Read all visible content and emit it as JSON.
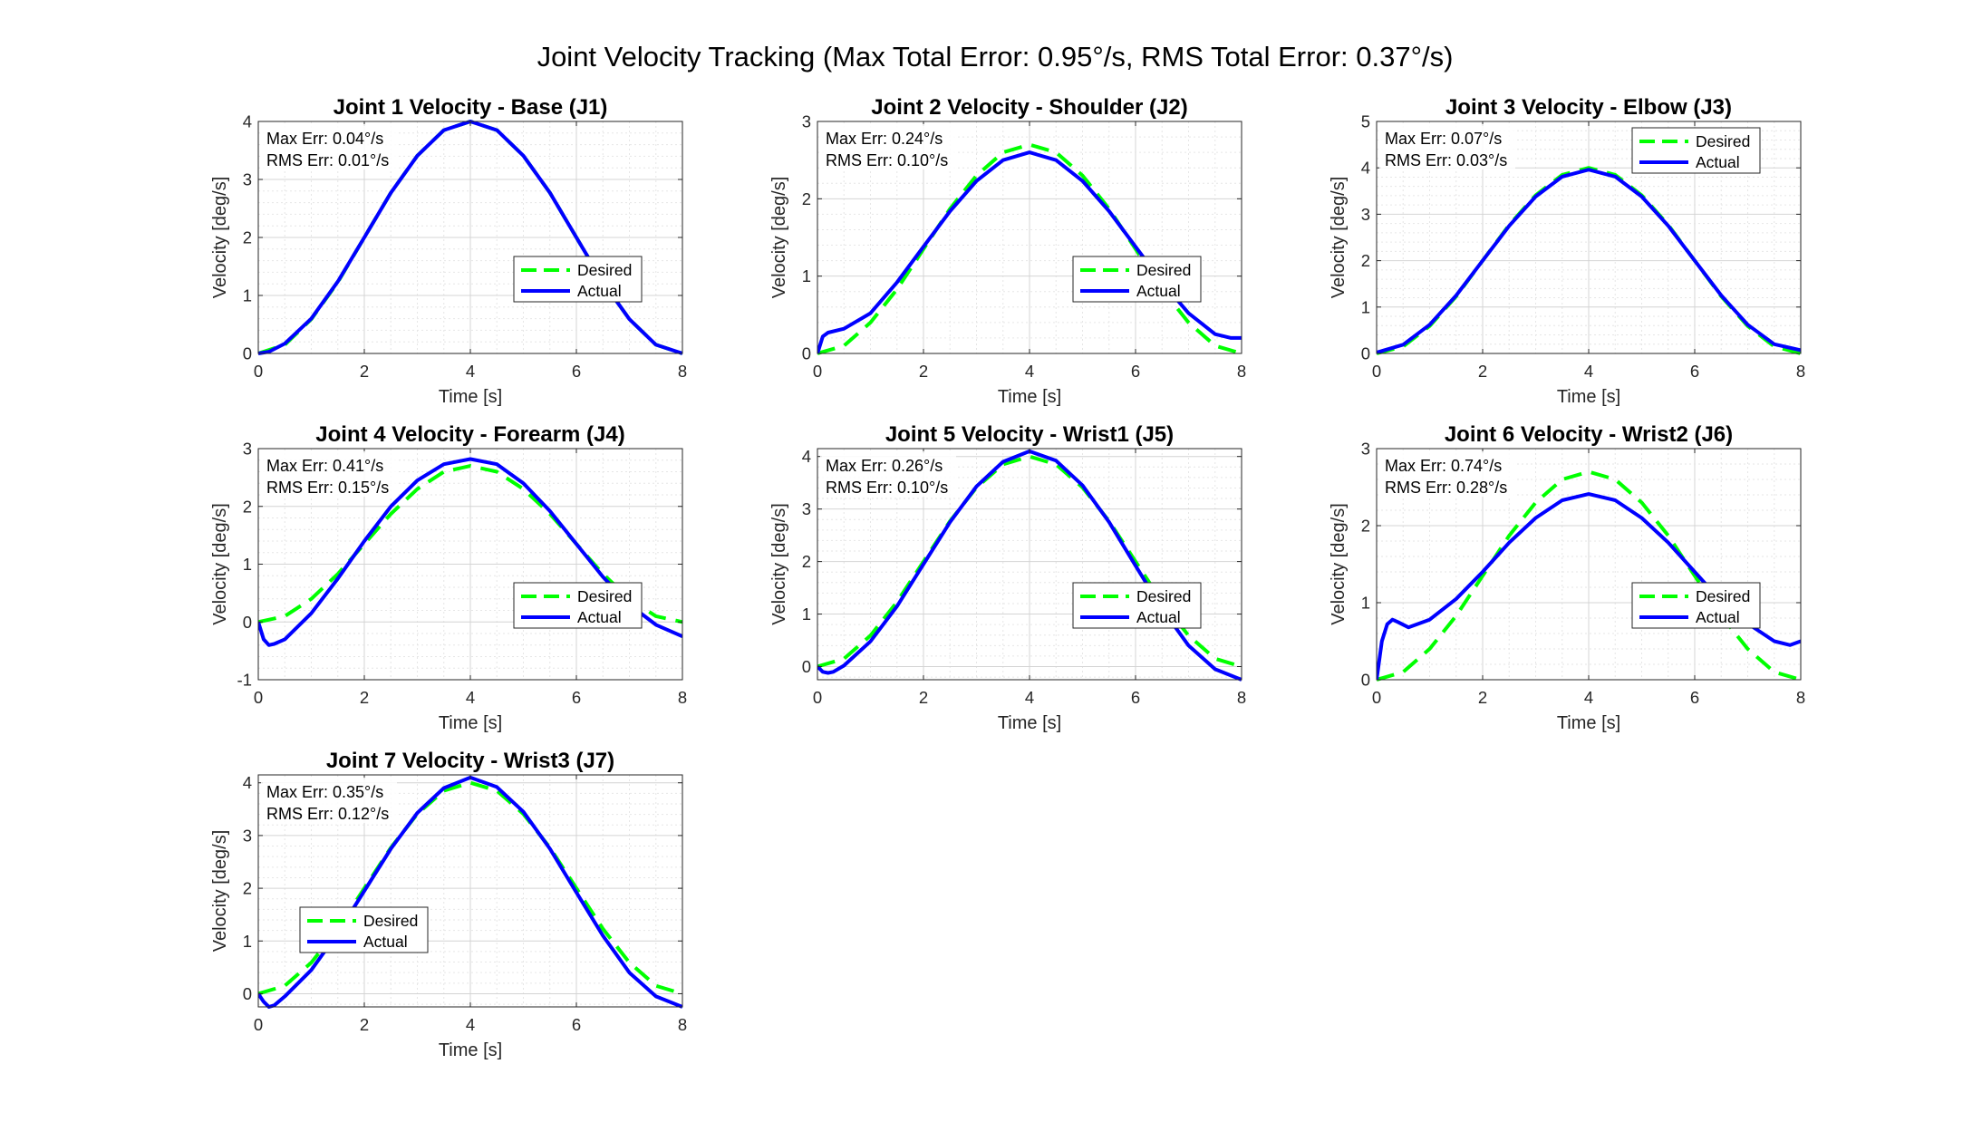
{
  "figure_title": "Joint Velocity Tracking (Max Total Error: 0.95°/s, RMS Total Error: 0.37°/s)",
  "colors": {
    "desired": "#00ff00",
    "actual": "#0000ff",
    "axis": "#262626",
    "grid": "#dcdcdc"
  },
  "chart_data": [
    {
      "type": "line",
      "title": "Joint 1 Velocity - Base (J1)",
      "xlabel": "Time [s]",
      "ylabel": "Velocity [deg/s]",
      "xlim": [
        0,
        8
      ],
      "ylim": [
        0,
        4
      ],
      "xticks": [
        "0",
        "2",
        "4",
        "6",
        "8"
      ],
      "yticks": [
        "0",
        "1",
        "2",
        "3",
        "4"
      ],
      "grid": true,
      "legend_position": "lower-right",
      "annotation": [
        "Max Err: 0.04°/s",
        "RMS Err: 0.01°/s"
      ],
      "series": [
        {
          "name": "Desired",
          "style": "dashed",
          "x": [
            0,
            0.5,
            1,
            1.5,
            2,
            2.5,
            3,
            3.5,
            4,
            4.5,
            5,
            5.5,
            6,
            6.5,
            7,
            7.5,
            8
          ],
          "y": [
            0,
            0.15,
            0.59,
            1.23,
            2.0,
            2.77,
            3.41,
            3.85,
            4.0,
            3.85,
            3.41,
            2.77,
            2.0,
            1.23,
            0.59,
            0.15,
            0
          ]
        },
        {
          "name": "Actual",
          "style": "solid",
          "x": [
            0,
            0.2,
            0.5,
            1,
            1.5,
            2,
            2.5,
            3,
            3.5,
            4,
            4.5,
            5,
            5.5,
            6,
            6.5,
            7,
            7.5,
            8
          ],
          "y": [
            0,
            0.03,
            0.17,
            0.6,
            1.24,
            2.0,
            2.77,
            3.41,
            3.85,
            4.0,
            3.85,
            3.41,
            2.77,
            2.0,
            1.23,
            0.59,
            0.15,
            0.0
          ]
        }
      ]
    },
    {
      "type": "line",
      "title": "Joint 2 Velocity - Shoulder (J2)",
      "xlabel": "Time [s]",
      "ylabel": "Velocity [deg/s]",
      "xlim": [
        0,
        8
      ],
      "ylim": [
        0,
        3
      ],
      "xticks": [
        "0",
        "2",
        "4",
        "6",
        "8"
      ],
      "yticks": [
        "0",
        "1",
        "2",
        "3"
      ],
      "grid": true,
      "legend_position": "lower-right",
      "annotation": [
        "Max Err: 0.24°/s",
        "RMS Err: 0.10°/s"
      ],
      "series": [
        {
          "name": "Desired",
          "style": "dashed",
          "x": [
            0,
            0.5,
            1,
            1.5,
            2,
            2.5,
            3,
            3.5,
            4,
            4.5,
            5,
            5.5,
            6,
            6.5,
            7,
            7.5,
            8
          ],
          "y": [
            0,
            0.1,
            0.4,
            0.83,
            1.35,
            1.87,
            2.3,
            2.6,
            2.7,
            2.6,
            2.3,
            1.87,
            1.35,
            0.83,
            0.4,
            0.1,
            0
          ]
        },
        {
          "name": "Actual",
          "style": "solid",
          "x": [
            0,
            0.1,
            0.2,
            0.5,
            1,
            1.5,
            2,
            2.5,
            3,
            3.5,
            4,
            4.5,
            5,
            5.5,
            6,
            6.5,
            7,
            7.5,
            7.8,
            8
          ],
          "y": [
            0,
            0.22,
            0.27,
            0.32,
            0.52,
            0.92,
            1.38,
            1.84,
            2.23,
            2.5,
            2.6,
            2.5,
            2.23,
            1.84,
            1.38,
            0.92,
            0.52,
            0.25,
            0.2,
            0.2
          ]
        }
      ]
    },
    {
      "type": "line",
      "title": "Joint 3 Velocity - Elbow (J3)",
      "xlabel": "Time [s]",
      "ylabel": "Velocity [deg/s]",
      "xlim": [
        0,
        8
      ],
      "ylim": [
        0,
        5
      ],
      "xticks": [
        "0",
        "2",
        "4",
        "6",
        "8"
      ],
      "yticks": [
        "0",
        "1",
        "2",
        "3",
        "4",
        "5"
      ],
      "grid": true,
      "legend_position": "upper-right",
      "annotation": [
        "Max Err: 0.07°/s",
        "RMS Err: 0.03°/s"
      ],
      "series": [
        {
          "name": "Desired",
          "style": "dashed",
          "x": [
            0,
            0.5,
            1,
            1.5,
            2,
            2.5,
            3,
            3.5,
            4,
            4.5,
            5,
            5.5,
            6,
            6.5,
            7,
            7.5,
            8
          ],
          "y": [
            0,
            0.15,
            0.59,
            1.23,
            2.0,
            2.77,
            3.41,
            3.85,
            4.0,
            3.85,
            3.41,
            2.77,
            2.0,
            1.23,
            0.59,
            0.15,
            0
          ]
        },
        {
          "name": "Actual",
          "style": "solid",
          "x": [
            0,
            0.5,
            1,
            1.5,
            2,
            2.5,
            3,
            3.5,
            4,
            4.5,
            5,
            5.5,
            6,
            6.5,
            7,
            7.5,
            8
          ],
          "y": [
            0.02,
            0.19,
            0.62,
            1.25,
            2.0,
            2.75,
            3.38,
            3.81,
            3.96,
            3.81,
            3.38,
            2.75,
            2.0,
            1.25,
            0.62,
            0.2,
            0.07
          ]
        }
      ]
    },
    {
      "type": "line",
      "title": "Joint 4 Velocity - Forearm (J4)",
      "xlabel": "Time [s]",
      "ylabel": "Velocity [deg/s]",
      "xlim": [
        0,
        8
      ],
      "ylim": [
        -1,
        3
      ],
      "xticks": [
        "0",
        "2",
        "4",
        "6",
        "8"
      ],
      "yticks": [
        "-1",
        "0",
        "1",
        "2",
        "3"
      ],
      "grid": true,
      "legend_position": "lower-right",
      "annotation": [
        "Max Err: 0.41°/s",
        "RMS Err: 0.15°/s"
      ],
      "series": [
        {
          "name": "Desired",
          "style": "dashed",
          "x": [
            0,
            0.5,
            1,
            1.5,
            2,
            2.5,
            3,
            3.5,
            4,
            4.5,
            5,
            5.5,
            6,
            6.5,
            7,
            7.5,
            8
          ],
          "y": [
            0,
            0.1,
            0.4,
            0.83,
            1.35,
            1.87,
            2.3,
            2.6,
            2.7,
            2.6,
            2.3,
            1.87,
            1.35,
            0.83,
            0.4,
            0.1,
            0
          ]
        },
        {
          "name": "Actual",
          "style": "solid",
          "x": [
            0,
            0.1,
            0.2,
            0.3,
            0.5,
            1,
            1.5,
            2,
            2.5,
            3,
            3.5,
            4,
            4.5,
            5,
            5.5,
            6,
            6.5,
            7,
            7.5,
            8
          ],
          "y": [
            0,
            -0.3,
            -0.4,
            -0.38,
            -0.3,
            0.15,
            0.75,
            1.4,
            2.0,
            2.45,
            2.73,
            2.82,
            2.73,
            2.4,
            1.92,
            1.35,
            0.78,
            0.3,
            -0.05,
            -0.25
          ]
        }
      ]
    },
    {
      "type": "line",
      "title": "Joint 5 Velocity - Wrist1 (J5)",
      "xlabel": "Time [s]",
      "ylabel": "Velocity [deg/s]",
      "xlim": [
        0,
        8
      ],
      "ylim": [
        -0.25,
        4.15
      ],
      "xticks": [
        "0",
        "2",
        "4",
        "6",
        "8"
      ],
      "yticks": [
        "0",
        "1",
        "2",
        "3",
        "4"
      ],
      "grid": true,
      "legend_position": "lower-right",
      "annotation": [
        "Max Err: 0.26°/s",
        "RMS Err: 0.10°/s"
      ],
      "series": [
        {
          "name": "Desired",
          "style": "dashed",
          "x": [
            0,
            0.5,
            1,
            1.5,
            2,
            2.5,
            3,
            3.5,
            4,
            4.5,
            5,
            5.5,
            6,
            6.5,
            7,
            7.5,
            8
          ],
          "y": [
            0,
            0.15,
            0.59,
            1.23,
            2.0,
            2.77,
            3.41,
            3.85,
            4.0,
            3.85,
            3.41,
            2.77,
            2.0,
            1.23,
            0.59,
            0.15,
            0
          ]
        },
        {
          "name": "Actual",
          "style": "solid",
          "x": [
            0,
            0.1,
            0.2,
            0.3,
            0.5,
            1,
            1.5,
            2,
            2.5,
            3,
            3.5,
            4,
            4.5,
            5,
            5.5,
            6,
            6.5,
            7,
            7.5,
            8
          ],
          "y": [
            0,
            -0.1,
            -0.12,
            -0.1,
            0.02,
            0.48,
            1.15,
            1.95,
            2.75,
            3.43,
            3.9,
            4.1,
            3.92,
            3.45,
            2.75,
            1.92,
            1.1,
            0.4,
            -0.05,
            -0.25
          ]
        }
      ]
    },
    {
      "type": "line",
      "title": "Joint 6 Velocity - Wrist2 (J6)",
      "xlabel": "Time [s]",
      "ylabel": "Velocity [deg/s]",
      "xlim": [
        0,
        8
      ],
      "ylim": [
        0,
        3
      ],
      "xticks": [
        "0",
        "2",
        "4",
        "6",
        "8"
      ],
      "yticks": [
        "0",
        "1",
        "2",
        "3"
      ],
      "grid": true,
      "legend_position": "lower-right",
      "annotation": [
        "Max Err: 0.74°/s",
        "RMS Err: 0.28°/s"
      ],
      "series": [
        {
          "name": "Desired",
          "style": "dashed",
          "x": [
            0,
            0.5,
            1,
            1.5,
            2,
            2.5,
            3,
            3.5,
            4,
            4.5,
            5,
            5.5,
            6,
            6.5,
            7,
            7.5,
            8
          ],
          "y": [
            0,
            0.1,
            0.4,
            0.83,
            1.35,
            1.87,
            2.3,
            2.6,
            2.7,
            2.6,
            2.3,
            1.87,
            1.35,
            0.83,
            0.4,
            0.1,
            0
          ]
        },
        {
          "name": "Actual",
          "style": "solid",
          "x": [
            0,
            0.1,
            0.2,
            0.3,
            0.4,
            0.6,
            1,
            1.5,
            2,
            2.5,
            3,
            3.5,
            4,
            4.5,
            5,
            5.5,
            6,
            6.5,
            7,
            7.5,
            7.8,
            8
          ],
          "y": [
            0,
            0.5,
            0.72,
            0.78,
            0.75,
            0.68,
            0.78,
            1.05,
            1.4,
            1.78,
            2.1,
            2.33,
            2.41,
            2.33,
            2.1,
            1.78,
            1.4,
            1.02,
            0.73,
            0.5,
            0.45,
            0.5
          ]
        }
      ]
    },
    {
      "type": "line",
      "title": "Joint 7 Velocity - Wrist3 (J7)",
      "xlabel": "Time [s]",
      "ylabel": "Velocity [deg/s]",
      "xlim": [
        0,
        8
      ],
      "ylim": [
        -0.25,
        4.15
      ],
      "xticks": [
        "0",
        "2",
        "4",
        "6",
        "8"
      ],
      "yticks": [
        "0",
        "1",
        "2",
        "3",
        "4"
      ],
      "grid": true,
      "legend_position": "lower-left",
      "annotation": [
        "Max Err: 0.35°/s",
        "RMS Err: 0.12°/s"
      ],
      "series": [
        {
          "name": "Desired",
          "style": "dashed",
          "x": [
            0,
            0.5,
            1,
            1.5,
            2,
            2.5,
            3,
            3.5,
            4,
            4.5,
            5,
            5.5,
            6,
            6.5,
            7,
            7.5,
            8
          ],
          "y": [
            0,
            0.15,
            0.59,
            1.23,
            2.0,
            2.77,
            3.41,
            3.85,
            4.0,
            3.85,
            3.41,
            2.77,
            2.0,
            1.23,
            0.59,
            0.15,
            0
          ]
        },
        {
          "name": "Actual",
          "style": "solid",
          "x": [
            0,
            0.1,
            0.2,
            0.3,
            0.5,
            1,
            1.5,
            2,
            2.5,
            3,
            3.5,
            4,
            4.5,
            5,
            5.5,
            6,
            6.5,
            7,
            7.5,
            8
          ],
          "y": [
            0,
            -0.15,
            -0.25,
            -0.22,
            -0.05,
            0.45,
            1.15,
            1.95,
            2.75,
            3.43,
            3.9,
            4.1,
            3.92,
            3.45,
            2.75,
            1.92,
            1.1,
            0.4,
            -0.05,
            -0.25
          ]
        }
      ]
    }
  ]
}
